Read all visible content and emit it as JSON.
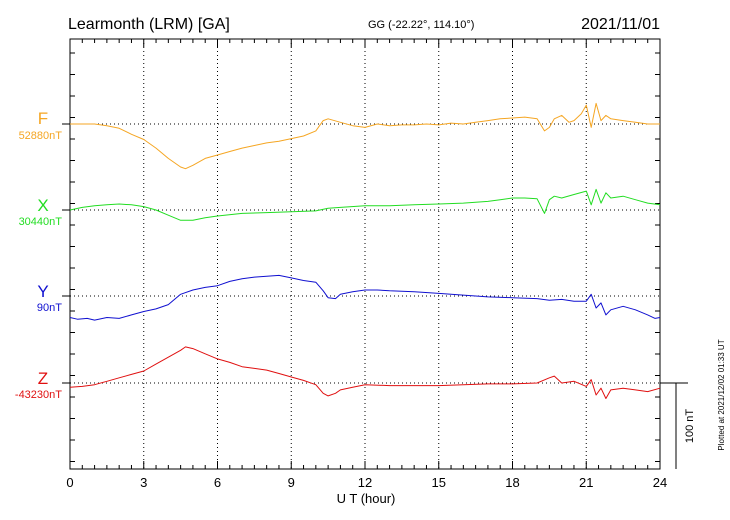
{
  "header": {
    "station": "Learmonth (LRM)  [GA]",
    "coords": "GG (-22.22°, 114.10°)",
    "date": "2021/11/01"
  },
  "footer_note": "Plotted at 2021/12/02 01:33 UT",
  "scale_label": "100 nT",
  "colors": {
    "F": "#f5a623",
    "X": "#22dd22",
    "Y": "#1010d0",
    "Z": "#e01010",
    "grid": "#000000"
  },
  "chart_data": {
    "type": "line",
    "xlabel": "U T (hour)",
    "xlim": [
      0,
      24
    ],
    "x_ticks": [
      "0",
      "3",
      "6",
      "9",
      "12",
      "15",
      "18",
      "21",
      "24"
    ],
    "scale_bar_nT": 100,
    "series": [
      {
        "name": "F",
        "baseline_label": "52880nT",
        "x": [
          0,
          0.5,
          1,
          1.5,
          2,
          2.5,
          3,
          3.5,
          4,
          4.5,
          4.7,
          5,
          5.5,
          6,
          6.5,
          7,
          7.5,
          8,
          8.5,
          9,
          9.5,
          10,
          10.3,
          10.5,
          11,
          11.5,
          12,
          12.5,
          13,
          13.5,
          14,
          14.5,
          15,
          15.5,
          16,
          16.5,
          17,
          17.5,
          18,
          18.5,
          19,
          19.3,
          19.5,
          19.7,
          20,
          20.3,
          20.5,
          20.8,
          21,
          21.2,
          21.4,
          21.6,
          21.8,
          22,
          22.5,
          23,
          23.5,
          24
        ],
        "y": [
          0,
          0,
          0,
          -2,
          -5,
          -12,
          -18,
          -28,
          -40,
          -50,
          -52,
          -48,
          -40,
          -36,
          -32,
          -28,
          -25,
          -22,
          -20,
          -17,
          -14,
          -8,
          4,
          6,
          2,
          -2,
          -4,
          0,
          -2,
          -1,
          -1,
          0,
          -1,
          1,
          0,
          2,
          4,
          6,
          7,
          8,
          6,
          -8,
          -4,
          6,
          10,
          2,
          4,
          12,
          22,
          -4,
          24,
          4,
          10,
          6,
          4,
          2,
          0,
          0
        ]
      },
      {
        "name": "X",
        "baseline_label": "30440nT",
        "x": [
          0,
          0.5,
          1,
          1.5,
          2,
          2.5,
          3,
          3.5,
          4,
          4.5,
          5,
          5.5,
          6,
          7,
          8,
          9,
          10,
          10.5,
          11,
          12,
          13,
          14,
          15,
          16,
          17,
          17.5,
          18,
          18.5,
          19,
          19.3,
          19.5,
          19.7,
          20,
          20.5,
          21,
          21.2,
          21.4,
          21.6,
          21.8,
          22,
          22.5,
          23,
          23.5,
          24
        ],
        "y": [
          0,
          3,
          5,
          6,
          7,
          6,
          4,
          0,
          -6,
          -12,
          -12,
          -9,
          -7,
          -4,
          -3,
          -2,
          -1,
          2,
          3,
          5,
          5,
          6,
          7,
          8,
          10,
          12,
          14,
          14,
          13,
          -4,
          12,
          16,
          14,
          18,
          22,
          6,
          24,
          8,
          20,
          14,
          16,
          12,
          8,
          6
        ]
      },
      {
        "name": "Y",
        "baseline_label": "90nT",
        "x": [
          0,
          0.3,
          0.7,
          1,
          1.5,
          2,
          2.5,
          3,
          3.5,
          4,
          4.5,
          5,
          5.5,
          6,
          6.5,
          7,
          7.5,
          8,
          8.5,
          9,
          9.5,
          10,
          10.3,
          10.5,
          10.8,
          11,
          11.5,
          12,
          12.5,
          13,
          14,
          15,
          16,
          17,
          18,
          19,
          19.5,
          20,
          20.5,
          21,
          21.2,
          21.4,
          21.6,
          21.8,
          22,
          22.5,
          23,
          23.5,
          23.8,
          24
        ],
        "y": [
          -25,
          -27,
          -26,
          -28,
          -25,
          -26,
          -22,
          -18,
          -15,
          -10,
          2,
          7,
          10,
          12,
          17,
          20,
          22,
          23,
          24,
          21,
          18,
          16,
          6,
          -2,
          -3,
          2,
          5,
          7,
          7,
          6,
          5,
          3,
          1,
          -1,
          -2,
          -3,
          -5,
          -4,
          -6,
          -6,
          2,
          -14,
          -8,
          -22,
          -16,
          -12,
          -16,
          -22,
          -26,
          -25
        ]
      },
      {
        "name": "Z",
        "baseline_label": "-43230nT",
        "x": [
          0,
          0.5,
          1,
          1.5,
          2,
          2.5,
          3,
          3.5,
          4,
          4.5,
          4.7,
          5,
          5.5,
          6,
          6.5,
          7,
          7.5,
          8,
          8.5,
          9,
          9.5,
          10,
          10.3,
          10.5,
          10.8,
          11,
          11.5,
          12,
          13,
          14,
          15,
          16,
          17,
          18,
          19,
          19.5,
          19.7,
          20,
          20.5,
          21,
          21.2,
          21.4,
          21.6,
          21.8,
          22,
          22.5,
          23,
          23.5,
          24
        ],
        "y": [
          -5,
          -4,
          -2,
          2,
          6,
          10,
          14,
          22,
          30,
          38,
          42,
          40,
          34,
          28,
          24,
          19,
          17,
          15,
          11,
          7,
          3,
          -2,
          -12,
          -15,
          -12,
          -8,
          -5,
          -2,
          -3,
          -3,
          -3,
          -2,
          -1,
          -1,
          0,
          6,
          8,
          0,
          2,
          -4,
          4,
          -14,
          -6,
          -18,
          -8,
          -6,
          -8,
          -10,
          -6
        ]
      }
    ]
  }
}
